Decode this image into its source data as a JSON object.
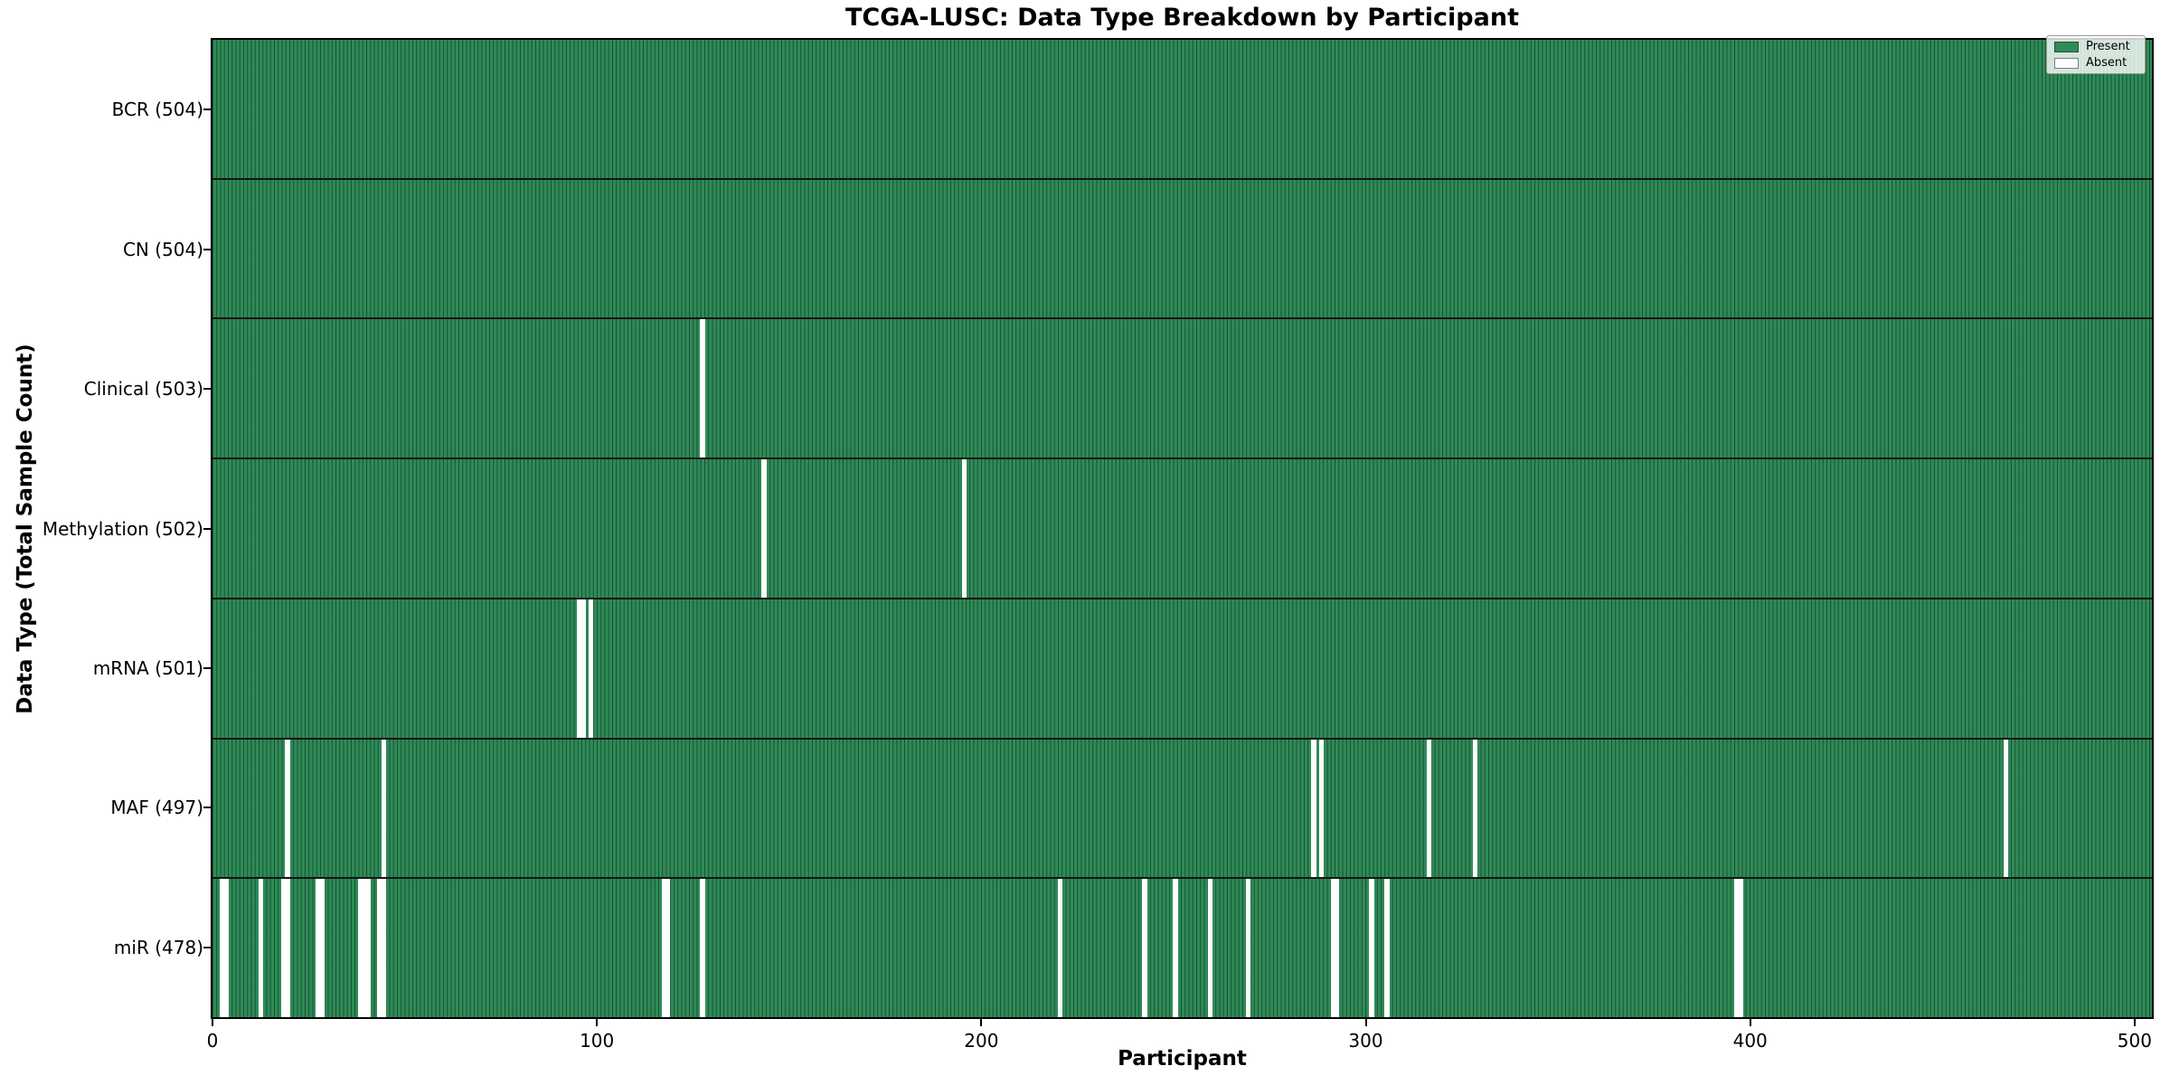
{
  "figure": {
    "title": "TCGA-LUSC: Data Type Breakdown by Participant",
    "xlabel": "Participant",
    "ylabel": "Data Type (Total Sample Count)"
  },
  "legend": {
    "position": "upper-right",
    "entries": [
      {
        "label": "Present",
        "color": "#2e8b57"
      },
      {
        "label": "Absent",
        "color": "#ffffff"
      }
    ]
  },
  "colors": {
    "present": "#2e8b57",
    "absent": "#ffffff",
    "bar_edge": "#163d2a",
    "axis": "#000000"
  },
  "chart_data": {
    "type": "heatmap",
    "title": "TCGA-LUSC: Data Type Breakdown by Participant",
    "xlabel": "Participant",
    "ylabel": "Data Type (Total Sample Count)",
    "total_participants": 504,
    "x_ticks": [
      0,
      100,
      200,
      300,
      400,
      500
    ],
    "x_max": 504.5,
    "grid": false,
    "legend_position": "upper right",
    "cell_values": {
      "present": 1,
      "absent": 0
    },
    "rows": [
      {
        "name": "BCR",
        "label": "BCR (504)",
        "present_count": 504,
        "absent_participants": []
      },
      {
        "name": "CN",
        "label": "CN (504)",
        "present_count": 504,
        "absent_participants": []
      },
      {
        "name": "Clinical",
        "label": "Clinical (503)",
        "present_count": 503,
        "absent_participants": [
          128
        ]
      },
      {
        "name": "Methylation",
        "label": "Methylation (502)",
        "present_count": 502,
        "absent_participants": [
          144,
          196
        ]
      },
      {
        "name": "mRNA",
        "label": "mRNA (501)",
        "present_count": 501,
        "absent_participants": [
          96,
          97,
          99
        ]
      },
      {
        "name": "MAF",
        "label": "MAF (497)",
        "present_count": 497,
        "absent_participants": [
          20,
          45,
          287,
          289,
          317,
          329,
          467
        ]
      },
      {
        "name": "miR",
        "label": "miR (478)",
        "present_count": 478,
        "absent_participants": [
          3,
          4,
          13,
          19,
          20,
          28,
          29,
          39,
          40,
          41,
          44,
          45,
          118,
          119,
          128,
          221,
          243,
          251,
          260,
          270,
          292,
          293,
          302,
          306,
          397,
          398
        ]
      }
    ]
  }
}
